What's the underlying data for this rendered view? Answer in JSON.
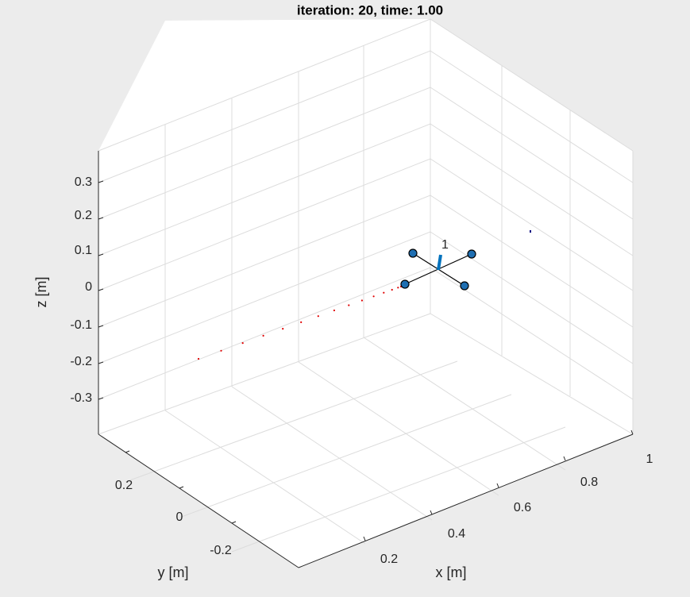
{
  "chart_data": {
    "type": "scatter3d",
    "title": "iteration: 20, time: 1.00",
    "xlabel": "x [m]",
    "ylabel": "y [m]",
    "zlabel": "z [m]",
    "grid": true,
    "x_ticks": [
      "0.2",
      "0.4",
      "0.6",
      "0.8",
      "1"
    ],
    "y_ticks": [
      "0.2",
      "0",
      "-0.2"
    ],
    "z_ticks": [
      "0.3",
      "0.2",
      "0.1",
      "0",
      "-0.1",
      "-0.2",
      "-0.3"
    ],
    "quadrotor": {
      "label": "1",
      "color": "#0072bd",
      "arm_color": "#000000"
    },
    "trajectory": {
      "color": "#e00000",
      "points": 15
    },
    "target_marker_color": "#000080"
  }
}
